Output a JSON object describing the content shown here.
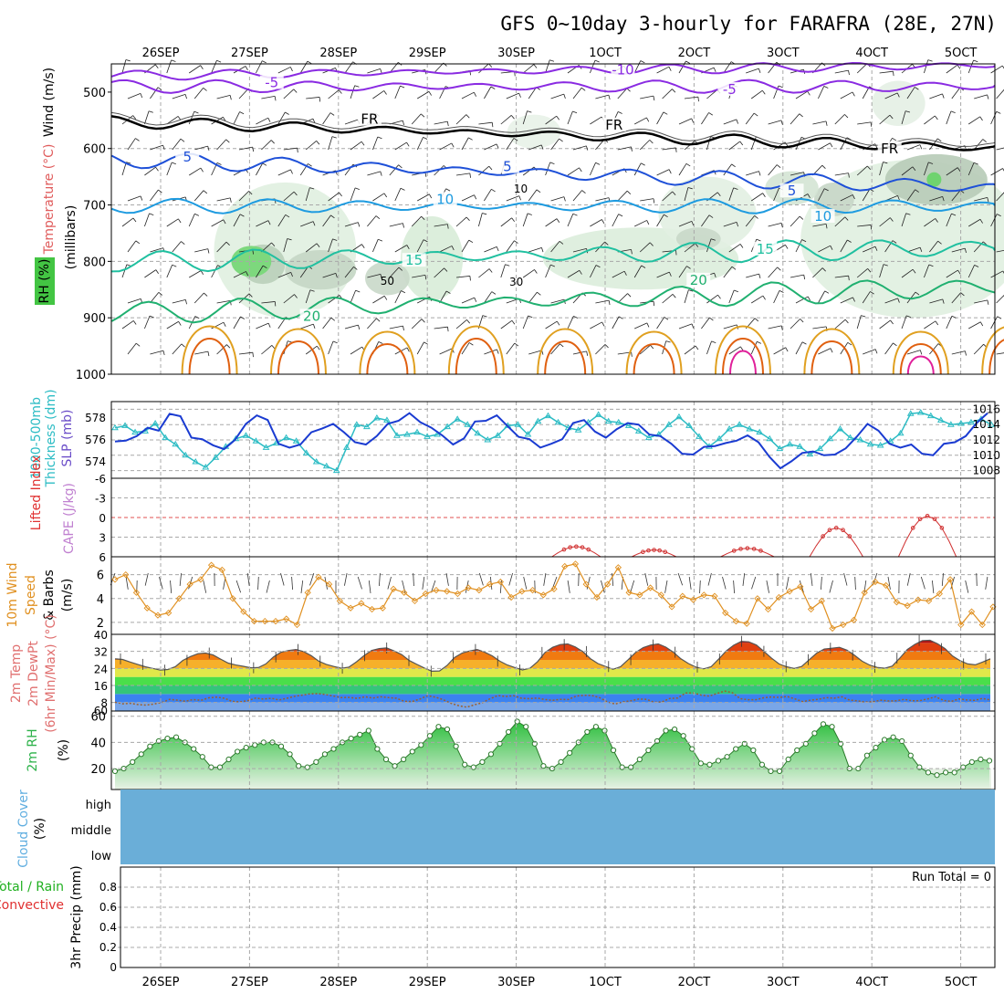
{
  "title": "GFS 0~10day 3-hourly for FARAFRA (28E, 27N)",
  "date_labels": [
    "26SEP",
    "27SEP",
    "28SEP",
    "29SEP",
    "30SEP",
    "1OCT",
    "2OCT",
    "3OCT",
    "4OCT",
    "5OCT"
  ],
  "colors": {
    "grid": "#a8a8a8",
    "freeze": "#000000",
    "cold": "#8a2be2",
    "t5": "#1e50d8",
    "t10": "#1e9be0",
    "t15": "#20c0a0",
    "t20": "#20b070",
    "warm": "#e0a020",
    "hot": "#e06010",
    "rh": "#2db24a",
    "slp": "#1a3bd1",
    "thick": "#2cbcc4",
    "cape": "#d03030",
    "wind": "#e09020",
    "cloud": "#6aaed8"
  },
  "chart_data": [
    {
      "type": "heatmap",
      "panel": "upper-air",
      "labels": {
        "wind": "Wind (m/s)",
        "temp": "Temperature (°C)",
        "rh": "RH (%)",
        "pressure": "(millibars)"
      },
      "y_ticks": [
        500,
        600,
        700,
        800,
        900,
        1000
      ],
      "ylim": [
        450,
        1000
      ],
      "isotherm_labels": [
        {
          "text": "-10",
          "day": 5.2,
          "p": 465
        },
        {
          "text": "-5",
          "day": 1.25,
          "p": 488
        },
        {
          "text": "-5",
          "day": 6.4,
          "p": 500
        },
        {
          "text": "FR",
          "day": 2.35,
          "p": 553
        },
        {
          "text": "FR",
          "day": 5.1,
          "p": 563
        },
        {
          "text": "FR",
          "day": 8.2,
          "p": 605
        },
        {
          "text": "5",
          "day": 0.3,
          "p": 620
        },
        {
          "text": "5",
          "day": 3.9,
          "p": 637
        },
        {
          "text": "10",
          "day": 3.2,
          "p": 695
        },
        {
          "text": "5",
          "day": 7.1,
          "p": 680
        },
        {
          "text": "10",
          "day": 7.45,
          "p": 725
        },
        {
          "text": "15",
          "day": 6.8,
          "p": 783
        },
        {
          "text": "15",
          "day": 2.85,
          "p": 803
        },
        {
          "text": "20",
          "day": 6.05,
          "p": 838
        },
        {
          "text": "20",
          "day": 1.7,
          "p": 902
        }
      ],
      "rh_labels": [
        {
          "text": "10",
          "day": 4.05,
          "p": 675
        },
        {
          "text": "50",
          "day": 2.55,
          "p": 838
        },
        {
          "text": "30",
          "day": 4.0,
          "p": 840
        }
      ],
      "isotherms": [
        {
          "name": "-10",
          "level": 470,
          "amp": 6,
          "trend": -18
        },
        {
          "name": "-5",
          "level": 490,
          "amp": 8,
          "trend": 0
        },
        {
          "name": "FR",
          "level": 555,
          "amp": 7,
          "trend": 45
        },
        {
          "name": "5",
          "level": 622,
          "amp": 10,
          "trend": 48
        },
        {
          "name": "10",
          "level": 702,
          "amp": 9,
          "trend": 0
        },
        {
          "name": "15",
          "level": 800,
          "amp": 13,
          "trend": -25
        },
        {
          "name": "20",
          "level": 890,
          "amp": 14,
          "trend": -45
        }
      ]
    },
    {
      "type": "line",
      "panel": "slp-thickness",
      "labels": {
        "thickness": "1000-500mb Thickness (dm)",
        "slp": "SLP (mb)"
      },
      "slp_ticks": [
        1008,
        1010,
        1012,
        1014,
        1016
      ],
      "slp_range": [
        1007,
        1017
      ],
      "thickness_ticks": [
        574,
        576,
        578
      ],
      "thickness_range": [
        572.5,
        579.5
      ],
      "slp": [
        1011.8,
        1011.9,
        1012.5,
        1013.6,
        1013.2,
        1015.4,
        1015.1,
        1012.3,
        1012.1,
        1011.3,
        1010.8,
        1012.0,
        1014.1,
        1015.2,
        1014.6,
        1011.5,
        1011.0,
        1011.4,
        1013.0,
        1013.5,
        1014.1,
        1013.0,
        1011.7,
        1011.4,
        1012.5,
        1014.1,
        1014.5,
        1015.5,
        1014.3,
        1013.6,
        1012.6,
        1011.4,
        1012.2,
        1014.4,
        1014.5,
        1015.2,
        1013.8,
        1012.4,
        1012.1,
        1011.0,
        1011.5,
        1012.1,
        1014.2,
        1014.6,
        1013.1,
        1012.3,
        1013.4,
        1014.2,
        1014.0,
        1012.7,
        1012.5,
        1011.5,
        1010.2,
        1010.1,
        1011.1,
        1011.2,
        1011.6,
        1011.9,
        1012.6,
        1011.7,
        1009.8,
        1008.3,
        1009.2,
        1010.3,
        1010.5,
        1010.0,
        1010.1,
        1010.9,
        1012.4,
        1014.1,
        1013.2,
        1011.5,
        1011.0,
        1011.4,
        1010.2,
        1010.0,
        1011.5,
        1011.7,
        1012.5,
        1014.2,
        1015.5
      ],
      "thickness": [
        577.1,
        577.3,
        576.7,
        576.8,
        577.5,
        576.2,
        575.6,
        574.6,
        574.0,
        573.5,
        574.4,
        575.4,
        576.1,
        576.4,
        575.9,
        575.3,
        575.7,
        576.2,
        575.9,
        574.8,
        574.0,
        573.6,
        573.2,
        575.3,
        577.4,
        577.2,
        578.0,
        577.8,
        576.4,
        576.5,
        576.7,
        576.3,
        576.5,
        577.2,
        577.9,
        577.4,
        576.6,
        576.0,
        576.4,
        577.3,
        577.4,
        576.5,
        577.7,
        578.2,
        577.6,
        577.1,
        576.9,
        577.6,
        578.3,
        577.7,
        577.6,
        577.3,
        576.8,
        576.2,
        576.5,
        577.4,
        578.1,
        577.3,
        576.3,
        575.4,
        576.1,
        577.0,
        577.4,
        577.0,
        576.7,
        576.1,
        575.2,
        575.6,
        575.4,
        574.7,
        575.2,
        576.1,
        577.0,
        576.2,
        576.0,
        575.6,
        575.5,
        575.9,
        576.6,
        578.4,
        578.5,
        578.2,
        577.8,
        577.4,
        577.5,
        577.6,
        577.9,
        577.4
      ]
    },
    {
      "type": "line",
      "panel": "stability",
      "labels": {
        "lifted": "Lifted Index",
        "cape": "CAPE (J/kg)"
      },
      "y_ticks": [
        "-6",
        "-3",
        "0",
        "3",
        "6"
      ],
      "ylim": [
        -6,
        6
      ],
      "cape_bumps": [
        {
          "start": 4.4,
          "end": 4.95,
          "peak": 0.6
        },
        {
          "start": 5.3,
          "end": 5.8,
          "peak": 0.4
        },
        {
          "start": 6.3,
          "end": 6.9,
          "peak": 0.5
        },
        {
          "start": 7.3,
          "end": 7.9,
          "peak": 1.7
        },
        {
          "start": 8.3,
          "end": 8.95,
          "peak": 2.4
        }
      ]
    },
    {
      "type": "line",
      "panel": "wind-10m",
      "labels": {
        "wind": "10m Wind Speed & Barbs (m/s)"
      },
      "y_ticks": [
        2,
        4,
        6
      ],
      "ylim": [
        1,
        7.5
      ],
      "speed": [
        5.6,
        6.0,
        4.5,
        3.2,
        2.6,
        2.8,
        4.0,
        5.2,
        5.6,
        6.8,
        6.4,
        4.0,
        2.9,
        2.1,
        2.1,
        2.1,
        2.3,
        1.8,
        4.5,
        5.8,
        5.2,
        3.8,
        3.2,
        3.6,
        3.1,
        3.2,
        4.8,
        4.5,
        3.8,
        4.4,
        4.7,
        4.6,
        4.4,
        4.9,
        4.7,
        5.2,
        5.4,
        4.1,
        4.6,
        4.7,
        4.3,
        4.8,
        6.7,
        6.9,
        5.2,
        4.1,
        5.2,
        6.6,
        4.5,
        4.3,
        4.9,
        4.3,
        3.3,
        4.2,
        3.9,
        4.3,
        4.2,
        2.8,
        2.1,
        1.9,
        4.0,
        3.1,
        4.1,
        4.6,
        5.0,
        3.1,
        3.8,
        1.5,
        1.8,
        2.2,
        4.5,
        5.4,
        5.1,
        3.7,
        3.4,
        3.9,
        3.8,
        4.4,
        5.6,
        1.8,
        2.9,
        1.8,
        3.3
      ]
    },
    {
      "type": "area",
      "panel": "temp-2m",
      "labels": {
        "temp": "2m Temp",
        "dewpt": "2m DewPt",
        "minmax": "(6hr Min/Max) (°C)"
      },
      "y_ticks": [
        8,
        16,
        24,
        32,
        40
      ],
      "ylim": [
        4,
        40
      ],
      "temp": [
        28.5,
        28.2,
        27.0,
        25.9,
        24.8,
        24.0,
        23.2,
        23.5,
        24.8,
        27.8,
        29.6,
        30.9,
        31.2,
        30.3,
        28.4,
        26.5,
        25.6,
        25.0,
        24.3,
        24.4,
        26.1,
        29.4,
        31.6,
        32.4,
        32.9,
        31.9,
        30.0,
        27.4,
        25.9,
        24.9,
        24.1,
        24.6,
        27.1,
        30.0,
        32.4,
        33.3,
        33.6,
        32.2,
        30.5,
        27.7,
        25.9,
        24.2,
        22.7,
        22.8,
        25.4,
        29.1,
        31.2,
        32.2,
        32.9,
        31.6,
        29.9,
        27.4,
        25.6,
        24.4,
        23.3,
        24.1,
        27.2,
        31.5,
        33.9,
        35.2,
        35.5,
        34.1,
        31.9,
        28.6,
        26.3,
        24.9,
        23.6,
        24.8,
        28.1,
        31.5,
        33.8,
        35.0,
        35.5,
        34.0,
        31.6,
        28.5,
        26.3,
        24.6,
        23.8,
        24.8,
        28.4,
        32.2,
        34.9,
        36.7,
        36.5,
        35.0,
        32.0,
        28.8,
        26.1,
        24.8,
        24.0,
        24.9,
        28.1,
        31.2,
        33.1,
        33.5,
        33.9,
        32.6,
        30.2,
        27.4,
        25.6,
        24.5,
        24.1,
        25.1,
        28.8,
        32.9,
        35.3,
        37.1,
        37.2,
        35.6,
        33.3,
        29.8,
        27.6,
        26.1,
        25.7,
        27.0,
        28.5
      ],
      "dewpt": [
        8.1,
        7.4,
        7.6,
        7.0,
        6.8,
        7.3,
        8.0,
        9.5,
        9.1,
        8.6,
        9.4,
        9.0,
        10.2,
        10.5,
        10.0,
        8.5,
        8.3,
        8.9,
        10.1,
        9.6,
        10.0,
        9.2,
        10.0,
        10.9,
        11.5,
        12.1,
        12.2,
        11.7,
        11.0,
        10.3,
        10.4,
        9.9,
        10.7,
        10.1,
        10.7,
        10.3,
        10.0,
        8.6,
        8.4,
        9.6,
        11.2,
        10.5,
        9.3,
        7.6,
        6.5,
        5.8,
        6.9,
        7.9,
        9.8,
        11.3,
        10.8,
        11.2,
        10.0,
        9.8,
        10.1,
        9.4,
        9.0,
        9.5,
        9.4,
        11.0,
        11.4,
        11.3,
        10.3,
        8.3,
        7.3,
        8.3,
        8.8,
        9.6,
        9.5,
        8.1,
        8.3,
        9.9,
        10.1,
        12.5,
        12.5,
        11.5,
        11.0,
        12.2,
        13.4,
        12.6,
        9.8,
        9.3,
        9.3,
        10.2,
        10.6,
        10.4,
        10.8,
        9.7,
        8.4,
        9.1,
        9.5,
        10.3,
        10.0,
        10.7,
        9.1,
        8.8,
        8.2,
        8.4,
        9.1,
        8.7,
        8.8,
        9.5,
        8.8,
        8.9,
        9.7,
        10.7,
        9.0,
        8.5,
        9.7,
        9.2,
        9.0,
        9.9,
        9.2
      ]
    },
    {
      "type": "area",
      "panel": "rh-2m",
      "labels": {
        "rh": "2m RH",
        "unit": "(%)"
      },
      "y_ticks": [
        20,
        40,
        60
      ],
      "ylim": [
        4,
        64
      ],
      "rh": [
        18,
        20,
        25,
        31,
        37,
        41,
        43,
        44,
        40,
        35,
        29,
        21,
        21,
        27,
        33,
        36,
        38,
        40,
        40,
        37,
        31,
        22,
        21,
        25,
        31,
        35,
        40,
        43,
        46,
        49,
        35,
        27,
        22,
        27,
        33,
        38,
        45,
        52,
        50,
        37,
        23,
        21,
        25,
        31,
        39,
        48,
        56,
        52,
        39,
        22,
        20,
        25,
        32,
        40,
        48,
        52,
        49,
        34,
        21,
        21,
        27,
        34,
        41,
        49,
        50,
        45,
        35,
        24,
        23,
        26,
        29,
        35,
        39,
        34,
        23,
        18,
        18,
        27,
        34,
        39,
        47,
        54,
        52,
        39,
        20,
        20,
        30,
        36,
        42,
        44,
        41,
        30,
        21,
        17,
        15,
        17,
        17,
        21,
        25,
        27,
        26
      ]
    },
    {
      "type": "area",
      "panel": "cloud-cover",
      "labels": {
        "title": "Cloud Cover (%)",
        "high": "high",
        "middle": "middle",
        "low": "low"
      }
    },
    {
      "type": "bar",
      "panel": "precip",
      "labels": {
        "total": "Total / Rain",
        "convective": "Convective",
        "ylabel": "3hr Precip (mm)",
        "run_total": "Run Total = 0"
      },
      "y_ticks": [
        "0",
        "0.2",
        "0.4",
        "0.6",
        "0.8"
      ],
      "ylim": [
        0,
        1
      ],
      "values": []
    }
  ]
}
